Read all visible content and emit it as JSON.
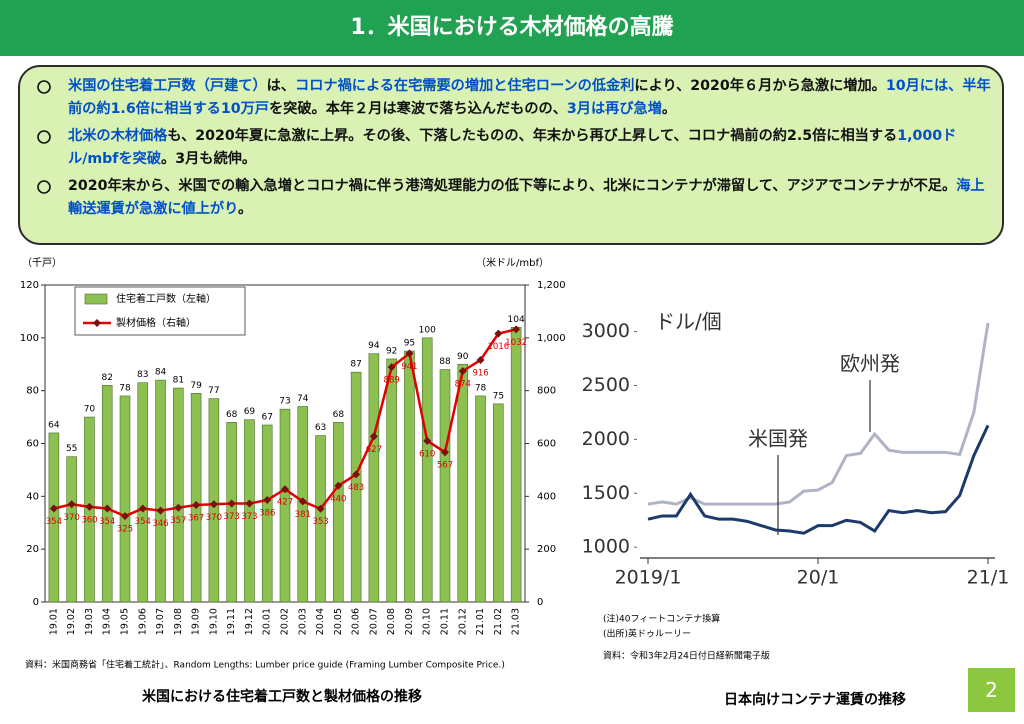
{
  "header": {
    "title": "1．米国における木材価格の高騰"
  },
  "bullets": [
    [
      {
        "text": "米国の住宅着工戸数（戸建て）",
        "color": "#0050c8"
      },
      {
        "text": "は、",
        "color": "#111111"
      },
      {
        "text": "コロナ禍による在宅需要の増加と住宅ローンの低金利",
        "color": "#0050c8"
      },
      {
        "text": "により、2020年６月から急激に増加。",
        "color": "#111111"
      },
      {
        "text": "10月には、半年前の約1.6倍に相当する10万戸",
        "color": "#0050c8"
      },
      {
        "text": "を突破。本年２月は寒波で落ち込んだものの、",
        "color": "#111111"
      },
      {
        "text": "3月は再び急増",
        "color": "#0050c8"
      },
      {
        "text": "。",
        "color": "#111111"
      }
    ],
    [
      {
        "text": "北米の木材価格",
        "color": "#0050c8"
      },
      {
        "text": "も、2020年夏に急激に上昇。その後、下落したものの、年末から再び上昇して、コロナ禍前の約2.5倍に相当する",
        "color": "#111111"
      },
      {
        "text": "1,000ドル/mbfを突破",
        "color": "#0050c8"
      },
      {
        "text": "。3月も続伸。",
        "color": "#111111"
      }
    ],
    [
      {
        "text": "2020年末から、米国での輸入急増とコロナ禍に伴う港湾処理能力の低下等により、北米にコンテナが滞留して、アジアでコンテナが不足。",
        "color": "#111111"
      },
      {
        "text": "海上輸送運賃が急激に値上がり",
        "color": "#0050c8"
      },
      {
        "text": "。",
        "color": "#111111"
      }
    ]
  ],
  "chart_data": [
    {
      "type": "combo",
      "ylabel": "（千戸）",
      "y2label": "（米ドル/mbf）",
      "categories": [
        "19.01",
        "19.02",
        "19.03",
        "19.04",
        "19.05",
        "19.06",
        "19.07",
        "19.08",
        "19.09",
        "19.10",
        "19.11",
        "19.12",
        "20.01",
        "20.02",
        "20.03",
        "20.04",
        "20.05",
        "20.06",
        "20.07",
        "20.08",
        "20.09",
        "20.10",
        "20.11",
        "20.12",
        "21.01",
        "21.02",
        "21.03"
      ],
      "series": [
        {
          "name": "住宅着工戸数（左軸）",
          "type": "bar",
          "color": "#8cc152",
          "values": [
            64,
            55,
            70,
            82,
            78,
            83,
            84,
            81,
            79,
            77,
            68,
            69,
            67,
            73,
            74,
            63,
            68,
            87,
            94,
            92,
            95,
            100,
            88,
            90,
            78,
            75,
            104
          ]
        },
        {
          "name": "製材価格（右軸）",
          "type": "line",
          "axis": "y2",
          "color": "#e00000",
          "values": [
            354,
            370,
            360,
            354,
            325,
            354,
            346,
            357,
            367,
            370,
            373,
            373,
            386,
            427,
            381,
            353,
            440,
            483,
            627,
            889,
            941,
            610,
            567,
            874,
            916,
            1016,
            1032
          ]
        }
      ],
      "ylim": [
        0,
        120
      ],
      "yticks": [
        0,
        20,
        40,
        60,
        80,
        100,
        120
      ],
      "y2lim": [
        0,
        1200
      ],
      "y2ticks": [
        0,
        200,
        400,
        600,
        800,
        {
          "value": 1000,
          "label": "1,000"
        },
        {
          "value": 1200,
          "label": "1,200"
        }
      ],
      "legend": "top-left",
      "source": "資料：米国商務省「住宅着工統計」、Random Lengths: Lumber price guide (Framing Lumber Composite Price.)",
      "caption": "米国における住宅着工戸数と製材価格の推移"
    },
    {
      "type": "line",
      "ylabel": "ドル/個",
      "categories": [
        "2019/1",
        null,
        null,
        null,
        null,
        null,
        null,
        null,
        null,
        null,
        null,
        null,
        "20/1",
        null,
        null,
        null,
        null,
        null,
        null,
        null,
        null,
        null,
        null,
        null,
        "21/1"
      ],
      "series": [
        {
          "name": "欧州発",
          "color": "#b0b3c6",
          "values": [
            1400,
            1420,
            1400,
            1460,
            1400,
            1400,
            1400,
            1400,
            1400,
            1400,
            1420,
            1520,
            1530,
            1600,
            1850,
            1870,
            2050,
            1900,
            1880,
            1880,
            1880,
            1880,
            1860,
            2250,
            3080
          ]
        },
        {
          "name": "米国発",
          "color": "#1c3a6b",
          "values": [
            1260,
            1290,
            1290,
            1490,
            1290,
            1260,
            1260,
            1240,
            1200,
            1160,
            1150,
            1130,
            1200,
            1200,
            1250,
            1230,
            1150,
            1340,
            1320,
            1340,
            1320,
            1330,
            1480,
            1850,
            2130
          ]
        }
      ],
      "ylim": [
        900,
        3200
      ],
      "yticks": [
        1000,
        1500,
        2000,
        2500,
        3000
      ],
      "notes": [
        "(注)40フィートコンテナ換算",
        "(出所)英ドゥルーリー"
      ],
      "source": "資料：令和3年2月24日付日経新聞電子版",
      "caption": "日本向けコンテナ運賃の推移"
    }
  ],
  "page_number": "2"
}
